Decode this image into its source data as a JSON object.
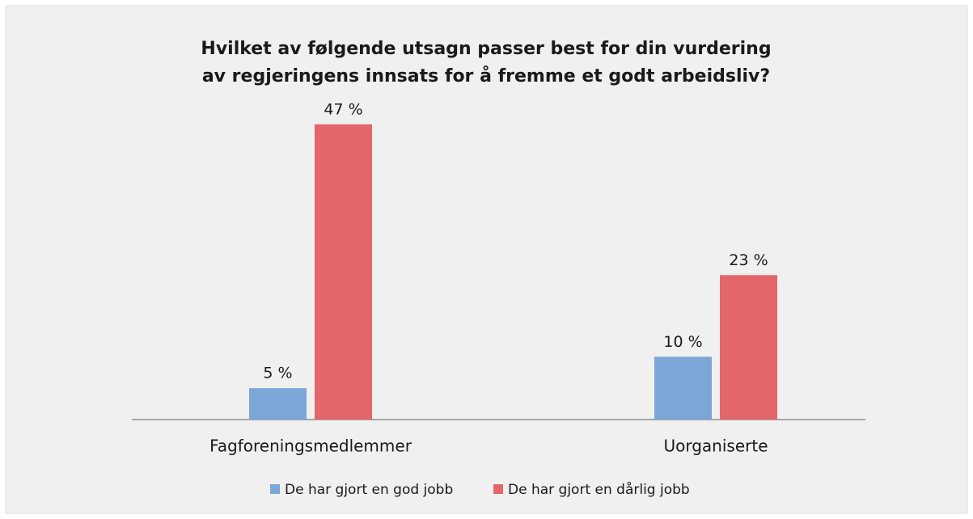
{
  "chart_data": {
    "type": "bar",
    "title": [
      "Hvilket av følgende utsagn passer best for din vurdering",
      "av regjeringens innsats for å fremme et godt arbeidsliv?"
    ],
    "categories": [
      "Fagforeningsmedlemmer",
      "Uorganiserte"
    ],
    "series": [
      {
        "name": "De har gjort en god jobb",
        "color": "#7ba7d7",
        "values": [
          5,
          10
        ],
        "value_labels": [
          "5 %",
          "10 %"
        ]
      },
      {
        "name": "De har gjort en dårlig jobb",
        "color": "#e2666a",
        "values": [
          47,
          23
        ],
        "value_labels": [
          "47 %",
          "23 %"
        ]
      }
    ],
    "legend": "bottom"
  }
}
